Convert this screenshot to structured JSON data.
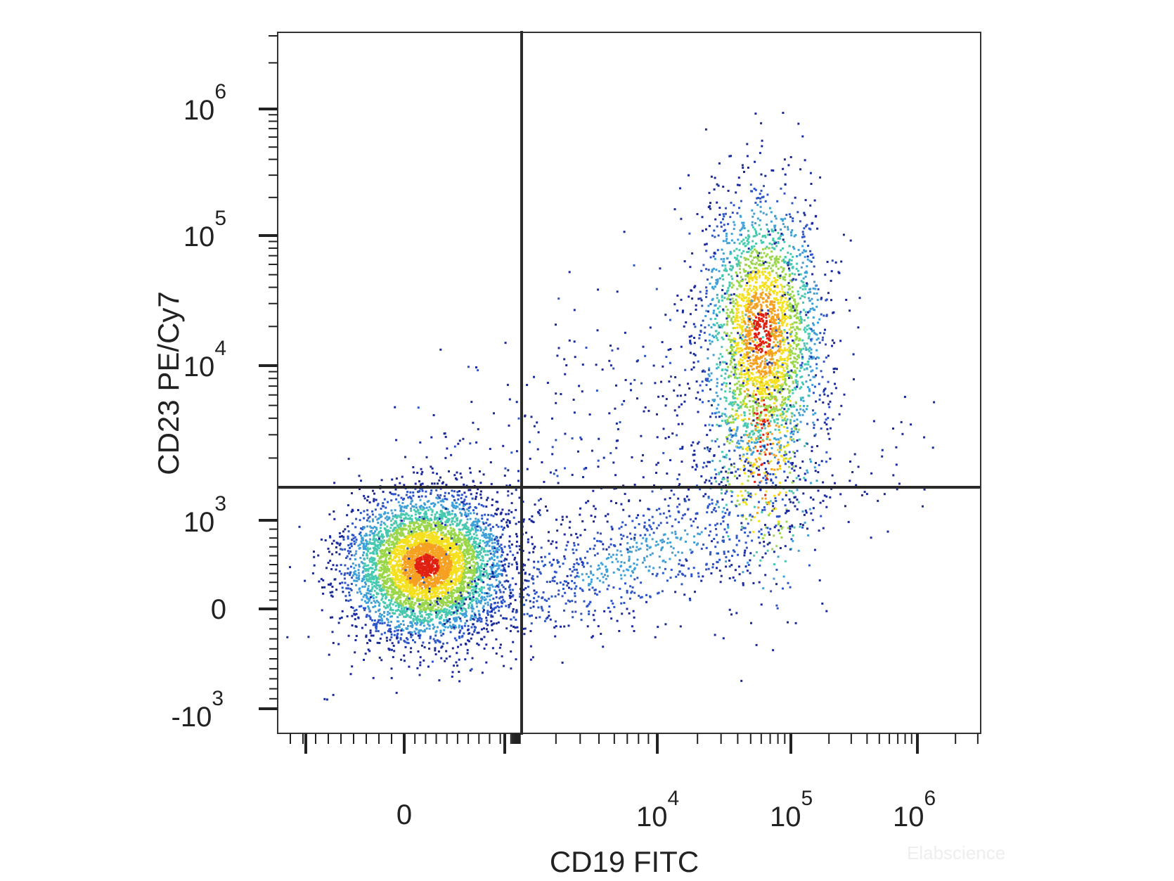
{
  "chart_data": {
    "type": "scatter",
    "subtype": "flow-cytometry density dot plot",
    "x_axis": {
      "label": "CD19 FITC",
      "scale": "biexponential",
      "tick_labels": [
        {
          "base": "0",
          "exp": "",
          "value": 0
        },
        {
          "base": "10",
          "exp": "4",
          "value": 10000
        },
        {
          "base": "10",
          "exp": "5",
          "value": 100000
        },
        {
          "base": "10",
          "exp": "6",
          "value": 1000000
        }
      ]
    },
    "y_axis": {
      "label": "CD23 PE/Cy7",
      "scale": "biexponential",
      "tick_labels": [
        {
          "base": "-10",
          "exp": "3",
          "value": -1000
        },
        {
          "base": "0",
          "exp": "",
          "value": 0
        },
        {
          "base": "10",
          "exp": "3",
          "value": 1000
        },
        {
          "base": "10",
          "exp": "4",
          "value": 10000
        },
        {
          "base": "10",
          "exp": "5",
          "value": 100000
        },
        {
          "base": "10",
          "exp": "6",
          "value": 1000000
        }
      ]
    },
    "quadrant_gate": {
      "x": 2000,
      "y": 1200
    },
    "populations": [
      {
        "name": "",
        "x_center": 200,
        "y_center": 500,
        "relative_size": 0.55,
        "density_peak": "high"
      },
      {
        "name": "",
        "x_center": 60000,
        "y_center": 18000,
        "relative_size": 0.35,
        "density_peak": "high"
      },
      {
        "name": "",
        "x_center": 8000,
        "y_center": 600,
        "relative_size": 0.1,
        "density_peak": "low"
      }
    ],
    "density_colors": [
      "#1a2a9c",
      "#2d55c8",
      "#3fa0d8",
      "#47c9b0",
      "#9ad64a",
      "#f5e020",
      "#f5a020",
      "#e02010"
    ],
    "grid": false,
    "legend": "none"
  },
  "watermark": "Elabscience"
}
